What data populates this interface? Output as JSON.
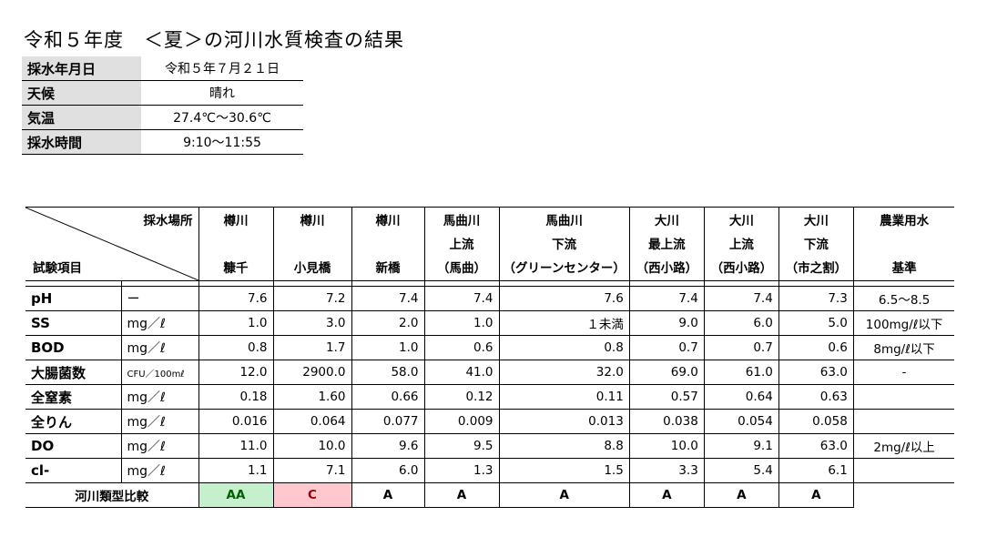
{
  "title": "令和５年度　＜夏＞の河川水質検査の結果",
  "info": [
    {
      "label": "採水年月日",
      "value": "令和５年７月２１日"
    },
    {
      "label": "天候",
      "value": "晴れ"
    },
    {
      "label": "気温",
      "value": "27.4℃～30.6℃"
    },
    {
      "label": "採水時間",
      "value": "9:10～11:55"
    }
  ],
  "header": {
    "sample_place": "採水場所",
    "test_item": "試験項目",
    "columns": [
      {
        "l1": "樽川",
        "l2": "",
        "l3": "糠千"
      },
      {
        "l1": "樽川",
        "l2": "",
        "l3": "小見橋"
      },
      {
        "l1": "樽川",
        "l2": "",
        "l3": "新橋"
      },
      {
        "l1": "馬曲川",
        "l2": "上流",
        "l3": "（馬曲）"
      },
      {
        "l1": "馬曲川",
        "l2": "下流",
        "l3": "（グリーンセンター）"
      },
      {
        "l1": "大川",
        "l2": "最上流",
        "l3": "（西小路）"
      },
      {
        "l1": "大川",
        "l2": "上流",
        "l3": "（西小路）"
      },
      {
        "l1": "大川",
        "l2": "下流",
        "l3": "（市之割）"
      },
      {
        "l1": "農業用水",
        "l2": "",
        "l3": "基準"
      }
    ]
  },
  "rows": [
    {
      "item": "pH",
      "unit": "ー",
      "values": [
        "7.6",
        "7.2",
        "7.4",
        "7.4",
        "7.6",
        "7.4",
        "7.4",
        "7.3"
      ],
      "standard": "6.5～8.5"
    },
    {
      "item": "SS",
      "unit": "mg／ℓ",
      "values": [
        "1.0",
        "3.0",
        "2.0",
        "1.0",
        "１未満",
        "9.0",
        "6.0",
        "5.0"
      ],
      "standard": "100mg/ℓ以下"
    },
    {
      "item": "BOD",
      "unit": "mg／ℓ",
      "values": [
        "0.8",
        "1.7",
        "1.0",
        "0.6",
        "0.8",
        "0.7",
        "0.7",
        "0.6"
      ],
      "standard": "8mg/ℓ以下"
    },
    {
      "item": "大腸菌数",
      "unit": "CFU／100mℓ",
      "values": [
        "12.0",
        "2900.0",
        "58.0",
        "41.0",
        "32.0",
        "69.0",
        "61.0",
        "63.0"
      ],
      "standard": "-"
    },
    {
      "item": "全窒素",
      "unit": "mg／ℓ",
      "values": [
        "0.18",
        "1.60",
        "0.66",
        "0.12",
        "0.11",
        "0.57",
        "0.64",
        "0.63"
      ],
      "standard": ""
    },
    {
      "item": "全りん",
      "unit": "mg／ℓ",
      "values": [
        "0.016",
        "0.064",
        "0.077",
        "0.009",
        "0.013",
        "0.038",
        "0.054",
        "0.058"
      ],
      "standard": ""
    },
    {
      "item": "DO",
      "unit": "mg／ℓ",
      "values": [
        "11.0",
        "10.0",
        "9.6",
        "9.5",
        "8.8",
        "10.0",
        "9.1",
        "63.0"
      ],
      "standard": "2mg/ℓ以上"
    },
    {
      "item": "cl-",
      "unit": "mg／ℓ",
      "values": [
        "1.1",
        "7.1",
        "6.0",
        "1.3",
        "1.5",
        "3.3",
        "5.4",
        "6.1"
      ],
      "standard": ""
    }
  ],
  "comparison": {
    "label": "河川類型比較",
    "values": [
      "AA",
      "C",
      "A",
      "A",
      "A",
      "A",
      "A",
      "A"
    ]
  },
  "colors": {
    "aa_bg": "#c6efce",
    "aa_text": "#006100",
    "c_bg": "#ffc7ce",
    "c_text": "#9c0006"
  }
}
